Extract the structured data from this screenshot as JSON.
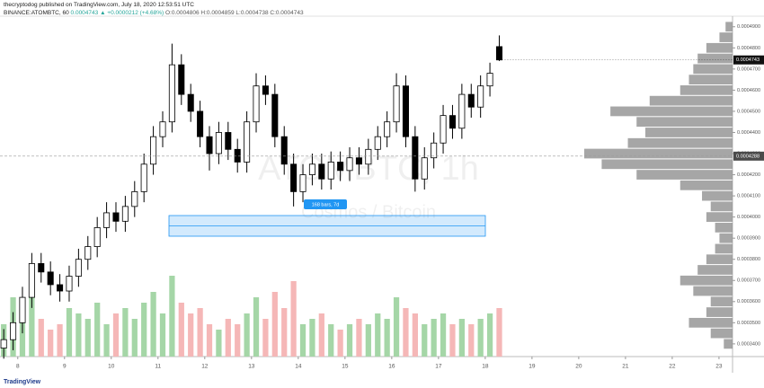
{
  "header": {
    "author_line": "thecryptodog published on TradingView.com, July 18, 2020 12:53:51 UTC",
    "symbol": "BINANCE:ATOMBTC, 60",
    "change": "0.0004743 ▲ +0.0000212 (+4.68%)",
    "ohlc": "O:0.0004806 H:0.0004859 L:0.0004738 C:0.0004743"
  },
  "footer": "TradingView",
  "chart_data": {
    "type": "candlestick",
    "watermark": "ATOMBTC, 1h",
    "watermark_sub": "Cosmos / Bitcoin",
    "measure_label": "168 bars, 7d",
    "up_color": "#ffffff",
    "down_color": "#000000",
    "vol_up_color": "#a5d6a7",
    "vol_down_color": "#f5b7b7",
    "profile_color": "#888888",
    "grid": false,
    "xlim": [
      7.62,
      23.29
    ],
    "xticks": [
      8,
      9,
      10,
      11,
      12,
      13,
      14,
      15,
      16,
      17,
      18,
      19,
      20,
      21,
      22,
      23
    ],
    "ylim": [
      0.000334,
      0.000495
    ],
    "yticks": [
      {
        "value": 0.00034,
        "label": "0.0003400"
      },
      {
        "value": 0.00035,
        "label": "0.0003500"
      },
      {
        "value": 0.00036,
        "label": "0.0003600"
      },
      {
        "value": 0.00037,
        "label": "0.0003700"
      },
      {
        "value": 0.00038,
        "label": "0.0003800"
      },
      {
        "value": 0.00039,
        "label": "0.0003900"
      },
      {
        "value": 0.0004,
        "label": "0.0004000"
      },
      {
        "value": 0.00041,
        "label": "0.0004100"
      },
      {
        "value": 0.00042,
        "label": "0.0004200"
      },
      {
        "value": 0.00043,
        "label": "0.0004300"
      },
      {
        "value": 0.00044,
        "label": "0.0004400"
      },
      {
        "value": 0.00045,
        "label": "0.0004500"
      },
      {
        "value": 0.00046,
        "label": "0.0004600"
      },
      {
        "value": 0.00047,
        "label": "0.0004700"
      },
      {
        "value": 0.00048,
        "label": "0.0004800"
      },
      {
        "value": 0.00049,
        "label": "0.0004900"
      }
    ],
    "last_price": {
      "value": 0.0004743,
      "label": "0.0004743"
    },
    "crosshair": {
      "value": 0.0004288,
      "label": "0.0004288"
    },
    "x": [
      7.7,
      7.9,
      8.1,
      8.3,
      8.5,
      8.7,
      8.9,
      9.1,
      9.3,
      9.5,
      9.7,
      9.9,
      10.1,
      10.3,
      10.5,
      10.7,
      10.9,
      11.1,
      11.3,
      11.5,
      11.7,
      11.9,
      12.1,
      12.3,
      12.5,
      12.7,
      12.9,
      13.1,
      13.3,
      13.5,
      13.7,
      13.9,
      14.1,
      14.3,
      14.5,
      14.7,
      14.9,
      15.1,
      15.3,
      15.5,
      15.7,
      15.9,
      16.1,
      16.3,
      16.5,
      16.7,
      16.9,
      17.1,
      17.3,
      17.5,
      17.7,
      17.9,
      18.1,
      18.3
    ],
    "open": [
      0.000338,
      0.000342,
      0.00035,
      0.000362,
      0.000378,
      0.000374,
      0.000368,
      0.000365,
      0.000372,
      0.00038,
      0.000386,
      0.000395,
      0.000402,
      0.000398,
      0.000405,
      0.000412,
      0.000425,
      0.000438,
      0.000445,
      0.000472,
      0.000458,
      0.00045,
      0.000438,
      0.00043,
      0.00044,
      0.000432,
      0.000426,
      0.000445,
      0.000462,
      0.000458,
      0.000438,
      0.000425,
      0.000412,
      0.00042,
      0.000425,
      0.000418,
      0.000426,
      0.000422,
      0.000428,
      0.000425,
      0.000432,
      0.000438,
      0.000445,
      0.000462,
      0.000438,
      0.000418,
      0.000428,
      0.000435,
      0.000448,
      0.000442,
      0.000458,
      0.000452,
      0.000462,
      0.0004806
    ],
    "high": [
      0.000347,
      0.000355,
      0.000367,
      0.000383,
      0.000383,
      0.000379,
      0.000373,
      0.000377,
      0.000385,
      0.000391,
      0.0004,
      0.000407,
      0.000407,
      0.00041,
      0.000417,
      0.00043,
      0.000443,
      0.00045,
      0.000482,
      0.000477,
      0.000463,
      0.000455,
      0.000443,
      0.000445,
      0.000445,
      0.000437,
      0.00045,
      0.000468,
      0.000467,
      0.000463,
      0.000443,
      0.00043,
      0.000425,
      0.00043,
      0.00043,
      0.000431,
      0.000431,
      0.000433,
      0.000433,
      0.000437,
      0.000443,
      0.00045,
      0.000468,
      0.000467,
      0.000443,
      0.000433,
      0.00044,
      0.000453,
      0.000453,
      0.000463,
      0.000463,
      0.000467,
      0.000473,
      0.0004859
    ],
    "low": [
      0.000333,
      0.000337,
      0.000345,
      0.000357,
      0.000369,
      0.000363,
      0.00036,
      0.00036,
      0.000367,
      0.000375,
      0.000381,
      0.00039,
      0.000393,
      0.000393,
      0.0004,
      0.000407,
      0.00042,
      0.000433,
      0.00044,
      0.000453,
      0.000445,
      0.000433,
      0.000422,
      0.000425,
      0.000427,
      0.000421,
      0.000421,
      0.00044,
      0.000453,
      0.000433,
      0.00042,
      0.000405,
      0.000407,
      0.000415,
      0.000413,
      0.000413,
      0.000417,
      0.000417,
      0.00042,
      0.00042,
      0.000427,
      0.000433,
      0.00044,
      0.000433,
      0.000412,
      0.000413,
      0.000423,
      0.00043,
      0.000437,
      0.000437,
      0.000447,
      0.000447,
      0.000457,
      0.0004738
    ],
    "close": [
      0.000342,
      0.00035,
      0.000362,
      0.000378,
      0.000374,
      0.000368,
      0.000365,
      0.000372,
      0.00038,
      0.000386,
      0.000395,
      0.000402,
      0.000398,
      0.000405,
      0.000412,
      0.000425,
      0.000438,
      0.000445,
      0.000472,
      0.000458,
      0.00045,
      0.000438,
      0.00043,
      0.00044,
      0.000432,
      0.000426,
      0.000445,
      0.000462,
      0.000458,
      0.000438,
      0.000425,
      0.000412,
      0.00042,
      0.000425,
      0.000418,
      0.000426,
      0.000422,
      0.000428,
      0.000425,
      0.000432,
      0.000438,
      0.000445,
      0.000462,
      0.000438,
      0.000418,
      0.000428,
      0.000435,
      0.000448,
      0.000442,
      0.000458,
      0.000452,
      0.000462,
      0.000468,
      0.0004743
    ],
    "volume": [
      30,
      55,
      40,
      60,
      35,
      25,
      30,
      45,
      40,
      35,
      50,
      30,
      40,
      45,
      35,
      50,
      60,
      40,
      75,
      50,
      40,
      45,
      30,
      25,
      35,
      30,
      40,
      55,
      35,
      60,
      45,
      70,
      30,
      35,
      40,
      30,
      25,
      30,
      35,
      30,
      40,
      35,
      55,
      45,
      40,
      30,
      35,
      40,
      30,
      35,
      30,
      35,
      40,
      45
    ],
    "profile_levels": [
      0.00034,
      0.000345,
      0.00035,
      0.000355,
      0.00036,
      0.000365,
      0.00037,
      0.000375,
      0.00038,
      0.000385,
      0.00039,
      0.000395,
      0.0004,
      0.000405,
      0.00041,
      0.000415,
      0.00042,
      0.000425,
      0.00043,
      0.000435,
      0.00044,
      0.000445,
      0.00045,
      0.000455,
      0.00046,
      0.000465,
      0.00047,
      0.000475,
      0.00048,
      0.000485,
      0.00049
    ],
    "profile_volumes": [
      10,
      25,
      50,
      30,
      25,
      45,
      60,
      40,
      30,
      20,
      15,
      20,
      30,
      25,
      35,
      60,
      110,
      150,
      170,
      120,
      100,
      110,
      140,
      95,
      60,
      50,
      45,
      40,
      30,
      15,
      8
    ]
  }
}
